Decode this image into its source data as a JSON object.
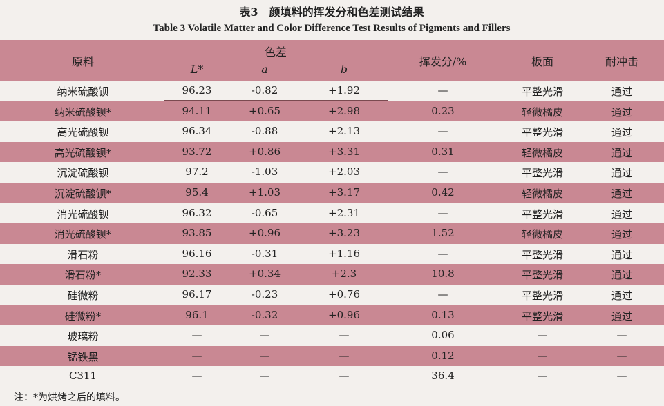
{
  "header": {
    "title_cn": "表3　颜填料的挥发分和色差测试结果",
    "title_en": "Table 3   Volatile Matter and Color Difference Test Results of Pigments and Fillers"
  },
  "table": {
    "columns": {
      "material": "原料",
      "color_diff": "色差",
      "L": "L*",
      "a": "a",
      "b": "b",
      "volatile": "挥发分/%",
      "surface": "板面",
      "impact": "耐冲击"
    },
    "rows": [
      [
        "纳米硫酸钡",
        "96.23",
        "-0.82",
        "+1.92",
        "—",
        "平整光滑",
        "通过"
      ],
      [
        "纳米硫酸钡*",
        "94.11",
        "+0.65",
        "+2.98",
        "0.23",
        "轻微橘皮",
        "通过"
      ],
      [
        "高光硫酸钡",
        "96.34",
        "-0.88",
        "+2.13",
        "—",
        "平整光滑",
        "通过"
      ],
      [
        "高光硫酸钡*",
        "93.72",
        "+0.86",
        "+3.31",
        "0.31",
        "轻微橘皮",
        "通过"
      ],
      [
        "沉淀硫酸钡",
        "97.2",
        "-1.03",
        "+2.03",
        "—",
        "平整光滑",
        "通过"
      ],
      [
        "沉淀硫酸钡*",
        "95.4",
        "+1.03",
        "+3.17",
        "0.42",
        "轻微橘皮",
        "通过"
      ],
      [
        "消光硫酸钡",
        "96.32",
        "-0.65",
        "+2.31",
        "—",
        "平整光滑",
        "通过"
      ],
      [
        "消光硫酸钡*",
        "93.85",
        "+0.96",
        "+3.23",
        "1.52",
        "轻微橘皮",
        "通过"
      ],
      [
        "滑石粉",
        "96.16",
        "-0.31",
        "+1.16",
        "—",
        "平整光滑",
        "通过"
      ],
      [
        "滑石粉*",
        "92.33",
        "+0.34",
        "+2.3",
        "10.8",
        "平整光滑",
        "通过"
      ],
      [
        "硅微粉",
        "96.17",
        "-0.23",
        "+0.76",
        "—",
        "平整光滑",
        "通过"
      ],
      [
        "硅微粉*",
        "96.1",
        "-0.32",
        "+0.96",
        "0.13",
        "平整光滑",
        "通过"
      ],
      [
        "玻璃粉",
        "—",
        "—",
        "—",
        "0.06",
        "—",
        "—"
      ],
      [
        "锰铁黑",
        "—",
        "—",
        "—",
        "0.12",
        "—",
        "—"
      ],
      [
        "C311",
        "—",
        "—",
        "—",
        "36.4",
        "—",
        "—"
      ]
    ]
  },
  "note": "注：*为烘烤之后的填料。"
}
